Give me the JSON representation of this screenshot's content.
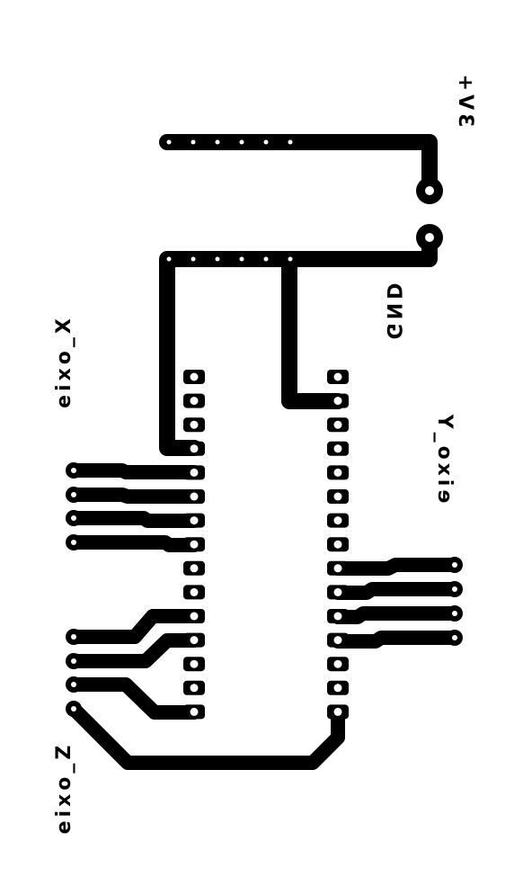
{
  "labels": {
    "vcc": "3V+",
    "gnd": "GND",
    "axis_x": "eixo_X",
    "axis_y": "eixo_Y",
    "axis_z": "eixo_Z"
  },
  "colors": {
    "copper": "#000000",
    "background": "#ffffff",
    "drill": "#ffffff"
  }
}
